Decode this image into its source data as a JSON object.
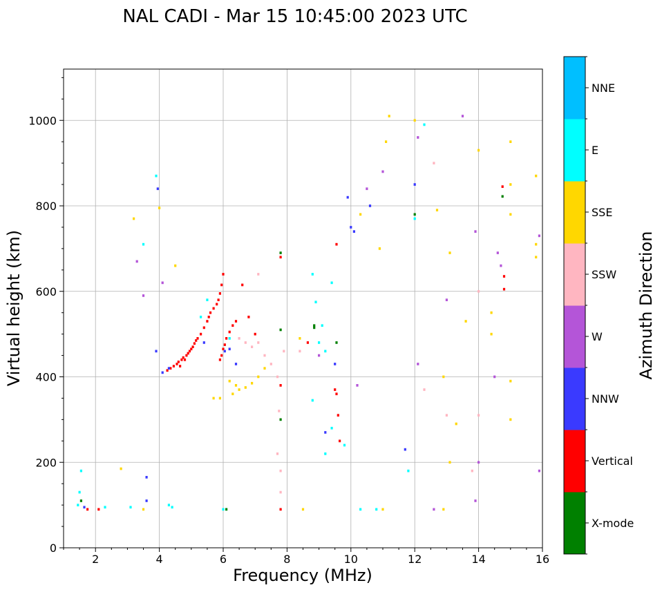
{
  "chart_data": {
    "type": "scatter",
    "title": "NAL CADI - Mar 15 10:45:00 2023 UTC",
    "xlabel": "Frequency (MHz)",
    "ylabel": "Virtual height (km)",
    "xlim": [
      1,
      16
    ],
    "ylim": [
      0,
      1120
    ],
    "x_ticks": [
      2,
      4,
      6,
      8,
      10,
      12,
      14,
      16
    ],
    "y_ticks": [
      0,
      200,
      400,
      600,
      800,
      1000
    ],
    "grid": true,
    "colorbar": {
      "label": "Azimuth Direction",
      "categories": [
        "X-mode",
        "Vertical",
        "NNW",
        "W",
        "SSW",
        "SSE",
        "E",
        "NNE"
      ],
      "colors": [
        "#008000",
        "#ff0000",
        "#3a3aff",
        "#b455d8",
        "#ffb6c1",
        "#ffd700",
        "#00ffff",
        "#00bfff"
      ]
    },
    "echo_cell_size": [
      0.07,
      6
    ],
    "series": [
      {
        "name": "X-mode",
        "points": [
          [
            7.8,
            690
          ],
          [
            7.8,
            510
          ],
          [
            7.8,
            300
          ],
          [
            8.85,
            515
          ],
          [
            8.85,
            520
          ],
          [
            12,
            780
          ],
          [
            14.75,
            822
          ],
          [
            9.55,
            480
          ],
          [
            1.55,
            110
          ],
          [
            6.1,
            90
          ]
        ]
      },
      {
        "name": "Vertical",
        "points": [
          [
            4.25,
            415
          ],
          [
            4.35,
            420
          ],
          [
            4.45,
            425
          ],
          [
            4.55,
            430
          ],
          [
            4.6,
            435
          ],
          [
            4.65,
            425
          ],
          [
            4.7,
            440
          ],
          [
            4.75,
            445
          ],
          [
            4.8,
            440
          ],
          [
            4.85,
            450
          ],
          [
            4.9,
            455
          ],
          [
            4.95,
            460
          ],
          [
            5.0,
            465
          ],
          [
            5.05,
            470
          ],
          [
            5.1,
            478
          ],
          [
            5.15,
            485
          ],
          [
            5.2,
            490
          ],
          [
            5.3,
            500
          ],
          [
            5.4,
            515
          ],
          [
            5.5,
            530
          ],
          [
            5.55,
            540
          ],
          [
            5.6,
            550
          ],
          [
            5.7,
            560
          ],
          [
            5.8,
            570
          ],
          [
            5.85,
            580
          ],
          [
            5.9,
            595
          ],
          [
            5.95,
            615
          ],
          [
            6.0,
            640
          ],
          [
            5.9,
            440
          ],
          [
            5.95,
            450
          ],
          [
            6.0,
            465
          ],
          [
            6.05,
            475
          ],
          [
            6.1,
            490
          ],
          [
            6.2,
            505
          ],
          [
            6.3,
            520
          ],
          [
            6.4,
            530
          ],
          [
            6.6,
            615
          ],
          [
            7.8,
            90
          ],
          [
            7.8,
            380
          ],
          [
            7.8,
            680
          ],
          [
            9.5,
            370
          ],
          [
            9.55,
            360
          ],
          [
            9.6,
            310
          ],
          [
            9.65,
            250
          ],
          [
            9.55,
            710
          ],
          [
            8.65,
            480
          ],
          [
            14.75,
            845
          ],
          [
            14.8,
            635
          ],
          [
            14.8,
            605
          ],
          [
            1.75,
            90
          ],
          [
            2.1,
            90
          ],
          [
            6.8,
            540
          ],
          [
            7.0,
            500
          ]
        ]
      },
      {
        "name": "NNW",
        "points": [
          [
            4.1,
            410
          ],
          [
            4.3,
            420
          ],
          [
            3.9,
            460
          ],
          [
            5.4,
            480
          ],
          [
            6.05,
            460
          ],
          [
            6.2,
            465
          ],
          [
            6.4,
            430
          ],
          [
            9.2,
            270
          ],
          [
            9.5,
            430
          ],
          [
            10.0,
            750
          ],
          [
            10.1,
            740
          ],
          [
            10.6,
            800
          ],
          [
            12.0,
            850
          ],
          [
            11.7,
            230
          ],
          [
            3.6,
            165
          ],
          [
            3.6,
            110
          ],
          [
            3.95,
            840
          ],
          [
            1.65,
            95
          ],
          [
            9.9,
            820
          ]
        ]
      },
      {
        "name": "W",
        "points": [
          [
            3.3,
            670
          ],
          [
            3.5,
            590
          ],
          [
            4.1,
            620
          ],
          [
            9.0,
            450
          ],
          [
            10.2,
            380
          ],
          [
            11.0,
            880
          ],
          [
            12.1,
            960
          ],
          [
            13.5,
            1010
          ],
          [
            13.9,
            740
          ],
          [
            14.6,
            690
          ],
          [
            14.7,
            660
          ],
          [
            14.5,
            400
          ],
          [
            15.9,
            730
          ],
          [
            15.9,
            180
          ],
          [
            13.0,
            580
          ],
          [
            14.0,
            200
          ],
          [
            12.6,
            90
          ],
          [
            13.9,
            110
          ],
          [
            12.1,
            430
          ],
          [
            10.5,
            840
          ]
        ]
      },
      {
        "name": "SSW",
        "points": [
          [
            6.5,
            490
          ],
          [
            6.7,
            480
          ],
          [
            6.9,
            470
          ],
          [
            7.1,
            480
          ],
          [
            7.3,
            450
          ],
          [
            7.5,
            430
          ],
          [
            7.7,
            400
          ],
          [
            7.75,
            320
          ],
          [
            7.8,
            180
          ],
          [
            7.8,
            130
          ],
          [
            7.7,
            220
          ],
          [
            7.9,
            460
          ],
          [
            8.4,
            460
          ],
          [
            7.1,
            640
          ],
          [
            12.6,
            900
          ],
          [
            13.0,
            310
          ],
          [
            14.0,
            600
          ],
          [
            13.8,
            180
          ],
          [
            14.0,
            310
          ],
          [
            12.3,
            370
          ]
        ]
      },
      {
        "name": "SSE",
        "points": [
          [
            6.3,
            360
          ],
          [
            6.5,
            370
          ],
          [
            6.7,
            375
          ],
          [
            6.9,
            385
          ],
          [
            7.1,
            400
          ],
          [
            7.3,
            420
          ],
          [
            6.2,
            390
          ],
          [
            6.4,
            380
          ],
          [
            5.9,
            350
          ],
          [
            5.7,
            350
          ],
          [
            8.4,
            490
          ],
          [
            8.5,
            90
          ],
          [
            10.3,
            780
          ],
          [
            11.1,
            950
          ],
          [
            12.7,
            790
          ],
          [
            13.1,
            690
          ],
          [
            13.3,
            290
          ],
          [
            12.9,
            400
          ],
          [
            15.0,
            950
          ],
          [
            15.0,
            850
          ],
          [
            15.0,
            780
          ],
          [
            15.0,
            390
          ],
          [
            15.0,
            300
          ],
          [
            15.8,
            870
          ],
          [
            15.8,
            710
          ],
          [
            15.8,
            680
          ],
          [
            4.0,
            795
          ],
          [
            3.5,
            90
          ],
          [
            2.8,
            185
          ],
          [
            4.5,
            660
          ],
          [
            3.2,
            770
          ],
          [
            11.0,
            90
          ],
          [
            12.0,
            1000
          ],
          [
            11.2,
            1010
          ],
          [
            10.9,
            700
          ],
          [
            13.6,
            530
          ],
          [
            13.1,
            200
          ],
          [
            12.9,
            90
          ],
          [
            14.0,
            930
          ],
          [
            14.4,
            500
          ],
          [
            14.4,
            550
          ]
        ]
      },
      {
        "name": "E",
        "points": [
          [
            5.5,
            580
          ],
          [
            5.3,
            540
          ],
          [
            6.2,
            490
          ],
          [
            6.0,
            90
          ],
          [
            8.8,
            640
          ],
          [
            8.9,
            575
          ],
          [
            9.0,
            480
          ],
          [
            9.2,
            460
          ],
          [
            9.4,
            620
          ],
          [
            8.8,
            345
          ],
          [
            9.2,
            220
          ],
          [
            9.4,
            280
          ],
          [
            9.1,
            520
          ],
          [
            9.8,
            240
          ],
          [
            10.3,
            90
          ],
          [
            10.8,
            90
          ],
          [
            12.3,
            990
          ],
          [
            12.0,
            770
          ],
          [
            11.8,
            180
          ],
          [
            3.5,
            710
          ],
          [
            3.9,
            870
          ],
          [
            1.5,
            130
          ],
          [
            1.55,
            180
          ],
          [
            1.45,
            100
          ],
          [
            4.3,
            100
          ],
          [
            4.4,
            95
          ],
          [
            2.3,
            95
          ],
          [
            3.1,
            95
          ]
        ]
      },
      {
        "name": "NNE",
        "points": []
      }
    ]
  }
}
